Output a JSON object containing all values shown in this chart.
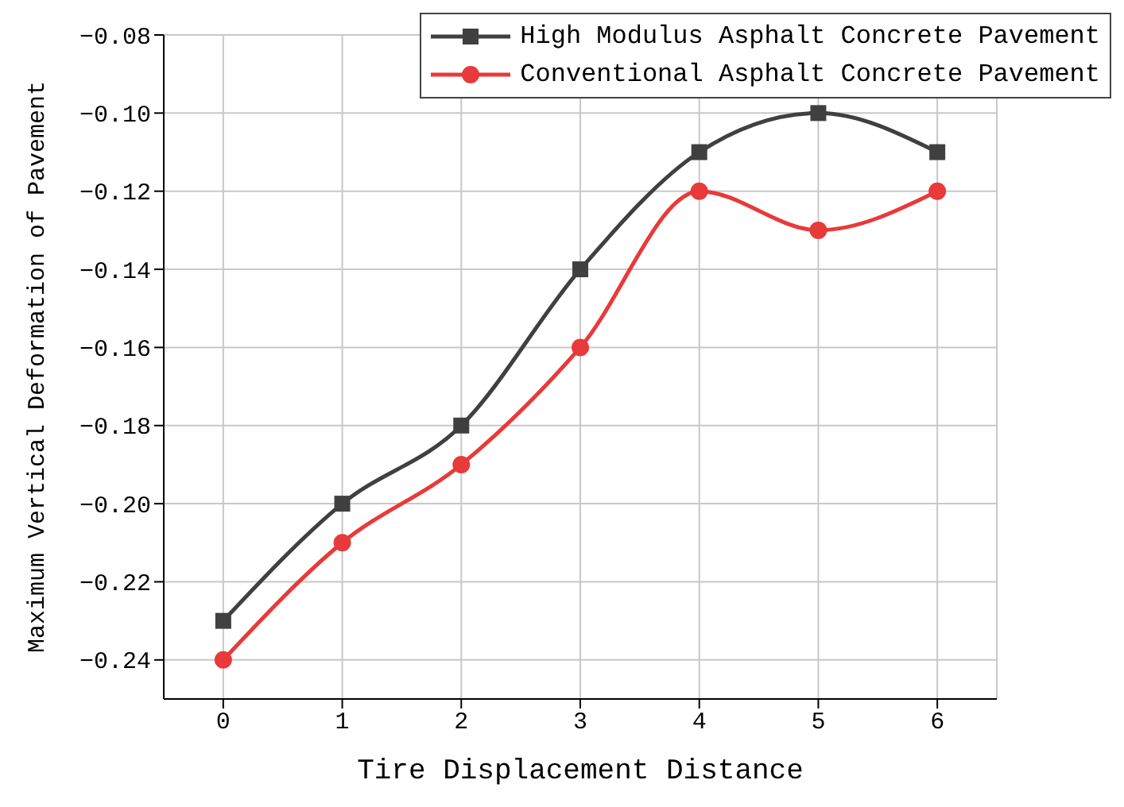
{
  "chart_data": {
    "type": "line",
    "xlabel": "Tire Displacement Distance",
    "ylabel": "Maximum Vertical Deformation of Pavement",
    "x": [
      0,
      1,
      2,
      3,
      4,
      5,
      6
    ],
    "series": [
      {
        "name": "High Modulus Asphalt Concrete Pavement",
        "color": "#404040",
        "marker": "square",
        "values": [
          -0.23,
          -0.2,
          -0.18,
          -0.14,
          -0.11,
          -0.1,
          -0.11
        ]
      },
      {
        "name": "Conventional Asphalt Concrete Pavement",
        "color": "#e83a3a",
        "marker": "circle",
        "values": [
          -0.24,
          -0.21,
          -0.19,
          -0.16,
          -0.12,
          -0.13,
          -0.12
        ]
      }
    ],
    "xlim": [
      -0.5,
      6.5
    ],
    "xticks": [
      0,
      1,
      2,
      3,
      4,
      5,
      6
    ],
    "ylim": [
      -0.25,
      -0.08
    ],
    "yticks": [
      {
        "value": -0.24,
        "label": "−0.24"
      },
      {
        "value": -0.22,
        "label": "−0.22"
      },
      {
        "value": -0.2,
        "label": "−0.20"
      },
      {
        "value": -0.18,
        "label": "−0.18"
      },
      {
        "value": -0.16,
        "label": "−0.16"
      },
      {
        "value": -0.14,
        "label": "−0.14"
      },
      {
        "value": -0.12,
        "label": "−0.12"
      },
      {
        "value": -0.1,
        "label": "−0.10"
      },
      {
        "value": -0.08,
        "label": "−0.08"
      }
    ],
    "grid": true,
    "legend": "top right",
    "line_style": "solid"
  }
}
